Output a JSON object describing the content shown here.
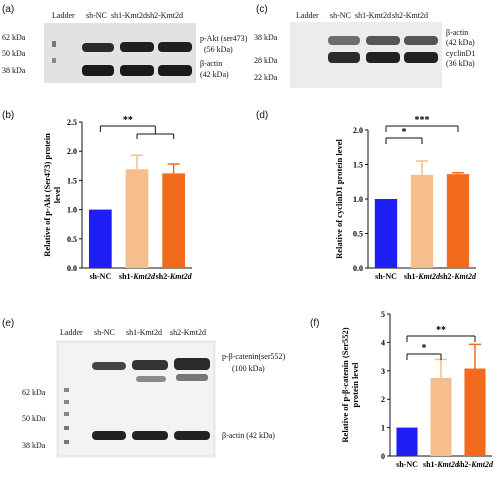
{
  "panels": {
    "a": {
      "label": "(a)",
      "lanes": [
        "Ladder",
        "sh-NC",
        "sh1-Kmt2d",
        "sh2-Kmt2d"
      ],
      "markers": [
        "62 kDa",
        "50 kDa",
        "38 kDa"
      ],
      "bands": [
        "p-Akt (ser473)",
        "(56 kDa)",
        "β-actin",
        "(42 kDa)"
      ]
    },
    "c": {
      "label": "(c)",
      "lanes": [
        "Ladder",
        "sh-NC",
        "sh1-Kmt2d",
        "sh2-Kmt2d"
      ],
      "markers": [
        "38 kDa",
        "28 kDa",
        "22 kDa"
      ],
      "bands": [
        "β-actin",
        "(42 kDa)",
        "cyclinD1",
        "(36 kDa)"
      ]
    },
    "e": {
      "label": "(e)",
      "lanes": [
        "Ladder",
        "sh-NC",
        "sh1-Kmt2d",
        "sh2-Kmt2d"
      ],
      "markers": [
        "62 kDa",
        "50 kDa",
        "38 kDa"
      ],
      "bands": [
        "p-β-catenin(ser552)",
        "(100 kDa)",
        "β-actin (42 kDa)"
      ]
    }
  },
  "chart_data": [
    {
      "panel": "(b)",
      "type": "bar",
      "categories": [
        "sh-NC",
        "sh1-Kmt2d",
        "sh2-Kmt2d"
      ],
      "values": [
        1.0,
        1.69,
        1.62
      ],
      "errors": [
        0.0,
        0.24,
        0.16
      ],
      "colors": [
        "#1f1ff5",
        "#f5be8c",
        "#f26a1b"
      ],
      "ylabel": "Relative of p-Akt (Ser473) protein level",
      "ylim": [
        0,
        2.5
      ],
      "yticks": [
        0.0,
        0.5,
        1.0,
        1.5,
        2.0,
        2.5
      ],
      "significance": [
        {
          "from": 0,
          "to": [
            1,
            2
          ],
          "text": "**"
        }
      ]
    },
    {
      "panel": "(d)",
      "type": "bar",
      "categories": [
        "sh-NC",
        "sh1-Kmt2d",
        "sh2-Kmt2d"
      ],
      "values": [
        1.0,
        1.35,
        1.36
      ],
      "errors": [
        0.0,
        0.2,
        0.02
      ],
      "colors": [
        "#1f1ff5",
        "#f5be8c",
        "#f26a1b"
      ],
      "ylabel": "Relative of cyclinD1 protein level",
      "ylim": [
        0,
        2.0
      ],
      "yticks": [
        0.0,
        0.5,
        1.0,
        1.5,
        2.0
      ],
      "significance": [
        {
          "from": 0,
          "to": [
            1
          ],
          "text": "*"
        },
        {
          "from": 0,
          "to": [
            2
          ],
          "text": "***"
        }
      ]
    },
    {
      "panel": "(f)",
      "type": "bar",
      "categories": [
        "sh-NC",
        "sh1-Kmt2d",
        "sh2-Kmt2d"
      ],
      "values": [
        1.0,
        2.75,
        3.08
      ],
      "errors": [
        0.0,
        0.65,
        0.85
      ],
      "colors": [
        "#1f1ff5",
        "#f5be8c",
        "#f26a1b"
      ],
      "ylabel": "Relative of p-β-catenin (Ser552) protein level",
      "ylim": [
        0,
        5
      ],
      "yticks": [
        0,
        1,
        2,
        3,
        4,
        5
      ],
      "significance": [
        {
          "from": 0,
          "to": [
            1
          ],
          "text": "*"
        },
        {
          "from": 0,
          "to": [
            2
          ],
          "text": "**"
        }
      ]
    }
  ]
}
